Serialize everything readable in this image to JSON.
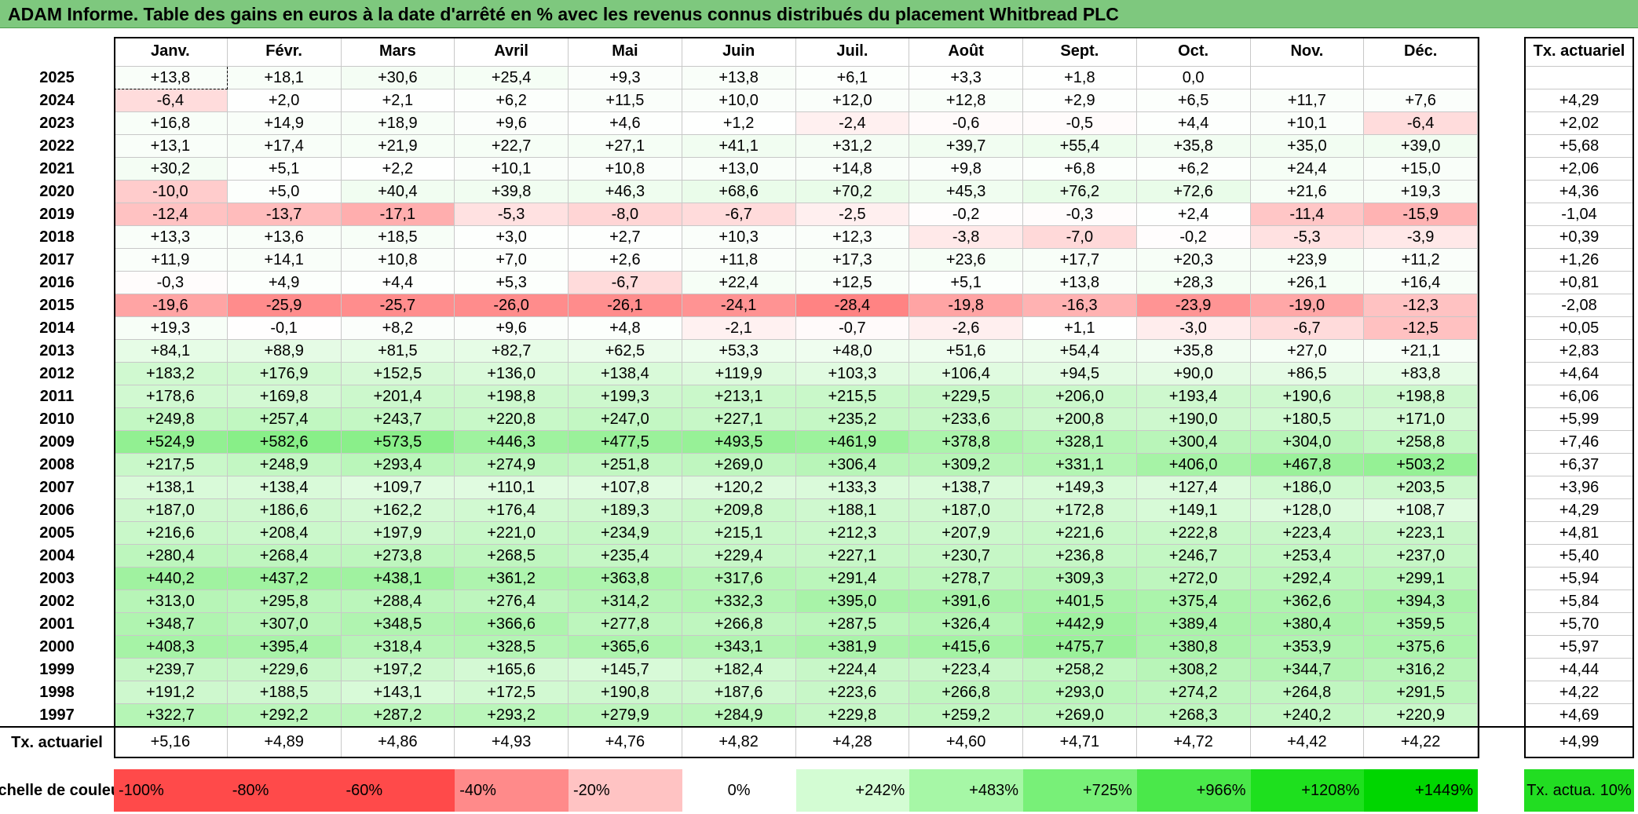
{
  "title": "ADAM Informe. Table des gains en euros à la date d'arrêté en % avec les revenus connus distribués du placement Whitbread PLC",
  "months": [
    "Janv.",
    "Févr.",
    "Mars",
    "Avril",
    "Mai",
    "Juin",
    "Juil.",
    "Août",
    "Sept.",
    "Oct.",
    "Nov.",
    "Déc."
  ],
  "tx_header": "Tx. actuariel",
  "footer_label": "Tx. actuariel",
  "scale_label": "Echelle de couleur",
  "chart_data": {
    "type": "table",
    "rows": [
      {
        "year": "2025",
        "values": [
          "+13,8",
          "+18,1",
          "+30,6",
          "+25,4",
          "+9,3",
          "+13,8",
          "+6,1",
          "+3,3",
          "+1,8",
          "0,0",
          "",
          ""
        ],
        "tx": ""
      },
      {
        "year": "2024",
        "values": [
          "-6,4",
          "+2,0",
          "+2,1",
          "+6,2",
          "+11,5",
          "+10,0",
          "+12,0",
          "+12,8",
          "+2,9",
          "+6,5",
          "+11,7",
          "+7,6"
        ],
        "tx": "+4,29"
      },
      {
        "year": "2023",
        "values": [
          "+16,8",
          "+14,9",
          "+18,9",
          "+9,6",
          "+4,6",
          "+1,2",
          "-2,4",
          "-0,6",
          "-0,5",
          "+4,4",
          "+10,1",
          "-6,4"
        ],
        "tx": "+2,02"
      },
      {
        "year": "2022",
        "values": [
          "+13,1",
          "+17,4",
          "+21,9",
          "+22,7",
          "+27,1",
          "+41,1",
          "+31,2",
          "+39,7",
          "+55,4",
          "+35,8",
          "+35,0",
          "+39,0"
        ],
        "tx": "+5,68"
      },
      {
        "year": "2021",
        "values": [
          "+30,2",
          "+5,1",
          "+2,2",
          "+10,1",
          "+10,8",
          "+13,0",
          "+14,8",
          "+9,8",
          "+6,8",
          "+6,2",
          "+24,4",
          "+15,0"
        ],
        "tx": "+2,06"
      },
      {
        "year": "2020",
        "values": [
          "-10,0",
          "+5,0",
          "+40,4",
          "+39,8",
          "+46,3",
          "+68,6",
          "+70,2",
          "+45,3",
          "+76,2",
          "+72,6",
          "+21,6",
          "+19,3"
        ],
        "tx": "+4,36"
      },
      {
        "year": "2019",
        "values": [
          "-12,4",
          "-13,7",
          "-17,1",
          "-5,3",
          "-8,0",
          "-6,7",
          "-2,5",
          "-0,2",
          "-0,3",
          "+2,4",
          "-11,4",
          "-15,9"
        ],
        "tx": "-1,04"
      },
      {
        "year": "2018",
        "values": [
          "+13,3",
          "+13,6",
          "+18,5",
          "+3,0",
          "+2,7",
          "+10,3",
          "+12,3",
          "-3,8",
          "-7,0",
          "-0,2",
          "-5,3",
          "-3,9"
        ],
        "tx": "+0,39"
      },
      {
        "year": "2017",
        "values": [
          "+11,9",
          "+14,1",
          "+10,8",
          "+7,0",
          "+2,6",
          "+11,8",
          "+17,3",
          "+23,6",
          "+17,7",
          "+20,3",
          "+23,9",
          "+11,2"
        ],
        "tx": "+1,26"
      },
      {
        "year": "2016",
        "values": [
          "-0,3",
          "+4,9",
          "+4,4",
          "+5,3",
          "-6,7",
          "+22,4",
          "+12,5",
          "+5,1",
          "+13,8",
          "+28,3",
          "+26,1",
          "+16,4"
        ],
        "tx": "+0,81"
      },
      {
        "year": "2015",
        "values": [
          "-19,6",
          "-25,9",
          "-25,7",
          "-26,0",
          "-26,1",
          "-24,1",
          "-28,4",
          "-19,8",
          "-16,3",
          "-23,9",
          "-19,0",
          "-12,3"
        ],
        "tx": "-2,08"
      },
      {
        "year": "2014",
        "values": [
          "+19,3",
          "-0,1",
          "+8,2",
          "+9,6",
          "+4,8",
          "-2,1",
          "-0,7",
          "-2,6",
          "+1,1",
          "-3,0",
          "-6,7",
          "-12,5"
        ],
        "tx": "+0,05"
      },
      {
        "year": "2013",
        "values": [
          "+84,1",
          "+88,9",
          "+81,5",
          "+82,7",
          "+62,5",
          "+53,3",
          "+48,0",
          "+51,6",
          "+54,4",
          "+35,8",
          "+27,0",
          "+21,1"
        ],
        "tx": "+2,83"
      },
      {
        "year": "2012",
        "values": [
          "+183,2",
          "+176,9",
          "+152,5",
          "+136,0",
          "+138,4",
          "+119,9",
          "+103,3",
          "+106,4",
          "+94,5",
          "+90,0",
          "+86,5",
          "+83,8"
        ],
        "tx": "+4,64"
      },
      {
        "year": "2011",
        "values": [
          "+178,6",
          "+169,8",
          "+201,4",
          "+198,8",
          "+199,3",
          "+213,1",
          "+215,5",
          "+229,5",
          "+206,0",
          "+193,4",
          "+190,6",
          "+198,8"
        ],
        "tx": "+6,06"
      },
      {
        "year": "2010",
        "values": [
          "+249,8",
          "+257,4",
          "+243,7",
          "+220,8",
          "+247,0",
          "+227,1",
          "+235,2",
          "+233,6",
          "+200,8",
          "+190,0",
          "+180,5",
          "+171,0"
        ],
        "tx": "+5,99"
      },
      {
        "year": "2009",
        "values": [
          "+524,9",
          "+582,6",
          "+573,5",
          "+446,3",
          "+477,5",
          "+493,5",
          "+461,9",
          "+378,8",
          "+328,1",
          "+300,4",
          "+304,0",
          "+258,8"
        ],
        "tx": "+7,46"
      },
      {
        "year": "2008",
        "values": [
          "+217,5",
          "+248,9",
          "+293,4",
          "+274,9",
          "+251,8",
          "+269,0",
          "+306,4",
          "+309,2",
          "+331,1",
          "+406,0",
          "+467,8",
          "+503,2"
        ],
        "tx": "+6,37"
      },
      {
        "year": "2007",
        "values": [
          "+138,1",
          "+138,4",
          "+109,7",
          "+110,1",
          "+107,8",
          "+120,2",
          "+133,3",
          "+138,7",
          "+149,3",
          "+127,4",
          "+186,0",
          "+203,5"
        ],
        "tx": "+3,96"
      },
      {
        "year": "2006",
        "values": [
          "+187,0",
          "+186,6",
          "+162,2",
          "+176,4",
          "+189,3",
          "+209,8",
          "+188,1",
          "+187,0",
          "+172,8",
          "+149,1",
          "+128,0",
          "+108,7"
        ],
        "tx": "+4,29"
      },
      {
        "year": "2005",
        "values": [
          "+216,6",
          "+208,4",
          "+197,9",
          "+221,0",
          "+234,9",
          "+215,1",
          "+212,3",
          "+207,9",
          "+221,6",
          "+222,8",
          "+223,4",
          "+223,1"
        ],
        "tx": "+4,81"
      },
      {
        "year": "2004",
        "values": [
          "+280,4",
          "+268,4",
          "+273,8",
          "+268,5",
          "+235,4",
          "+229,4",
          "+227,1",
          "+230,7",
          "+236,8",
          "+246,7",
          "+253,4",
          "+237,0"
        ],
        "tx": "+5,40"
      },
      {
        "year": "2003",
        "values": [
          "+440,2",
          "+437,2",
          "+438,1",
          "+361,2",
          "+363,8",
          "+317,6",
          "+291,4",
          "+278,7",
          "+309,3",
          "+272,0",
          "+292,4",
          "+299,1"
        ],
        "tx": "+5,94"
      },
      {
        "year": "2002",
        "values": [
          "+313,0",
          "+295,8",
          "+288,4",
          "+276,4",
          "+314,2",
          "+332,3",
          "+395,0",
          "+391,6",
          "+401,5",
          "+375,4",
          "+362,6",
          "+394,3"
        ],
        "tx": "+5,84"
      },
      {
        "year": "2001",
        "values": [
          "+348,7",
          "+307,0",
          "+348,5",
          "+366,6",
          "+277,8",
          "+266,8",
          "+287,5",
          "+326,4",
          "+442,9",
          "+389,4",
          "+380,4",
          "+359,5"
        ],
        "tx": "+5,70"
      },
      {
        "year": "2000",
        "values": [
          "+408,3",
          "+395,4",
          "+318,4",
          "+328,5",
          "+365,6",
          "+343,1",
          "+381,9",
          "+415,6",
          "+475,7",
          "+380,8",
          "+353,9",
          "+375,6"
        ],
        "tx": "+5,97"
      },
      {
        "year": "1999",
        "values": [
          "+239,7",
          "+229,6",
          "+197,2",
          "+165,6",
          "+145,7",
          "+182,4",
          "+224,4",
          "+223,4",
          "+258,2",
          "+308,2",
          "+344,7",
          "+316,2"
        ],
        "tx": "+4,44"
      },
      {
        "year": "1998",
        "values": [
          "+191,2",
          "+188,5",
          "+143,1",
          "+172,5",
          "+190,8",
          "+187,6",
          "+223,6",
          "+266,8",
          "+293,0",
          "+274,2",
          "+264,8",
          "+291,5"
        ],
        "tx": "+4,22"
      },
      {
        "year": "1997",
        "values": [
          "+322,7",
          "+292,2",
          "+287,2",
          "+293,2",
          "+279,9",
          "+284,9",
          "+229,8",
          "+259,2",
          "+269,0",
          "+268,3",
          "+240,2",
          "+220,9"
        ],
        "tx": "+4,69"
      }
    ],
    "footer_values": [
      "+5,16",
      "+4,89",
      "+4,86",
      "+4,93",
      "+4,76",
      "+4,82",
      "+4,28",
      "+4,60",
      "+4,71",
      "+4,72",
      "+4,42",
      "+4,22"
    ],
    "footer_tx": "+4,99",
    "color_scale": [
      {
        "label": "-100%",
        "color": "#ff4a4a"
      },
      {
        "label": "-80%",
        "color": "#ff4a4a"
      },
      {
        "label": "-60%",
        "color": "#ff4a4a"
      },
      {
        "label": "-40%",
        "color": "#ff8a8a"
      },
      {
        "label": "-20%",
        "color": "#ffc3c3"
      },
      {
        "label": "0%",
        "color": "#ffffff"
      },
      {
        "label": "+242%",
        "color": "#d3fcd3"
      },
      {
        "label": "+483%",
        "color": "#a6f7a6"
      },
      {
        "label": "+725%",
        "color": "#78f078"
      },
      {
        "label": "+966%",
        "color": "#4ae84a"
      },
      {
        "label": "+1208%",
        "color": "#1ee01e"
      },
      {
        "label": "+1449%",
        "color": "#00d600"
      }
    ],
    "tx_scale_label": "Tx. actua. 10%",
    "tx_scale_color": "#22dd22"
  }
}
